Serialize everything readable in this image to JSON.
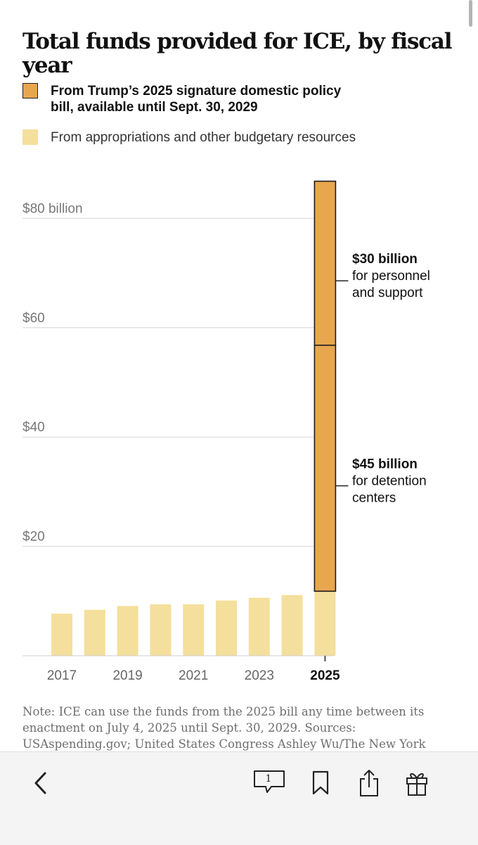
{
  "title": "Total funds provided for ICE, by fiscal year",
  "legend": [
    {
      "label": "From Trump’s 2025 signature domestic policy bill, available until Sept. 30, 2029",
      "color": "#e8a74f"
    },
    {
      "label": "From appropriations and other budgetary resources",
      "color": "#f5df9c"
    }
  ],
  "chart_data": {
    "type": "bar",
    "stacked": true,
    "categories": [
      "2017",
      "2018",
      "2019",
      "2020",
      "2021",
      "2022",
      "2023",
      "2024",
      "2025"
    ],
    "series": [
      {
        "name": "From appropriations and other budgetary resources",
        "color": "#f5df9c",
        "values": [
          7.7,
          8.4,
          9.1,
          9.4,
          9.4,
          10.1,
          10.6,
          11.1,
          11.8
        ]
      },
      {
        "name": "From Trump’s 2025 signature domestic policy bill, available until Sept. 30, 2029",
        "color": "#e8a74f",
        "values": [
          0,
          0,
          0,
          0,
          0,
          0,
          0,
          0,
          75
        ],
        "segments_2025": [
          45,
          30
        ]
      }
    ],
    "tick_labels": [
      "2017",
      "2019",
      "2021",
      "2023",
      "2025"
    ],
    "highlight_tick": "2025",
    "y_ticks": [
      {
        "value": 20,
        "label": "$20"
      },
      {
        "value": 40,
        "label": "$40"
      },
      {
        "value": 60,
        "label": "$60"
      },
      {
        "value": 80,
        "label": "$80 billion"
      }
    ],
    "ylim": [
      0,
      87
    ],
    "grid": true,
    "annotations": [
      {
        "bold": "$30 billion",
        "lines": [
          "for personnel",
          "and support"
        ]
      },
      {
        "bold": "$45 billion",
        "lines": [
          "for detention",
          "centers"
        ]
      }
    ]
  },
  "note": "Note: ICE can use the funds from the 2025 bill any time between its enactment on July 4, 2025 until Sept. 30, 2029.  Sources: USAspending.gov; United States Congress  Ashley Wu/The New York",
  "toolbar": {
    "comments_count": "1",
    "icons": [
      "back-icon",
      "comments-icon",
      "bookmark-icon",
      "share-icon",
      "gift-icon"
    ]
  }
}
